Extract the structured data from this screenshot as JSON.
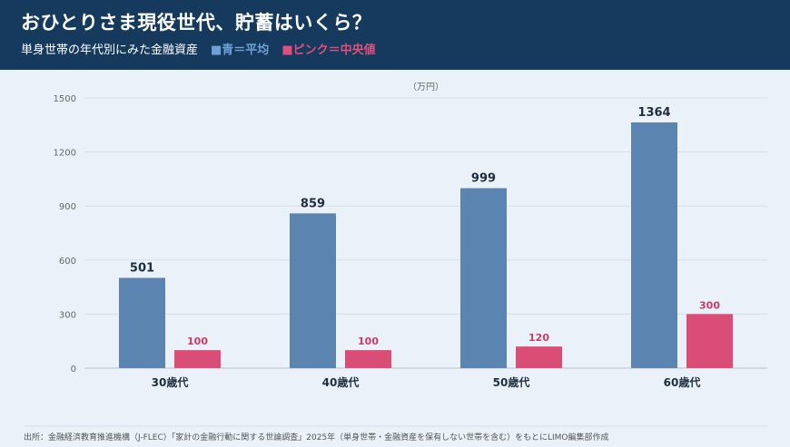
{
  "header": {
    "title": "おひとりさま現役世代、貯蓄はいくら？",
    "subtitle": "単身世帯の年代別にみた金融資産",
    "legend_mean": "■青＝平均",
    "legend_median": "■ピンク＝中央値"
  },
  "colors": {
    "mean": "#5b84b1",
    "median": "#d94d76",
    "header_bg": "#163a5e"
  },
  "chart_data": {
    "type": "bar",
    "title": "おひとりさま現役世代、貯蓄はいくら？",
    "subtitle": "単身世帯の年代別にみた金融資産",
    "unit": "（万円）",
    "categories": [
      "30歳代",
      "40歳代",
      "50歳代",
      "60歳代"
    ],
    "series": [
      {
        "name": "■青＝平均",
        "color": "#5b84b1",
        "values": [
          501,
          859,
          999,
          1364
        ]
      },
      {
        "name": "■ピンク＝中央値",
        "color": "#d94d76",
        "values": [
          100,
          100,
          120,
          300
        ]
      }
    ],
    "ylim": [
      0,
      1500
    ],
    "yticks": [
      0,
      300,
      600,
      900,
      1200,
      1500
    ],
    "grid": true,
    "legend": "top-left"
  },
  "source": "出所：金融経済教育推進機構（J-FLEC）「家計の金融行動に関する世論調査」2025年（単身世帯・金融資産を保有しない世帯を含む）をもとにLIMO編集部作成"
}
